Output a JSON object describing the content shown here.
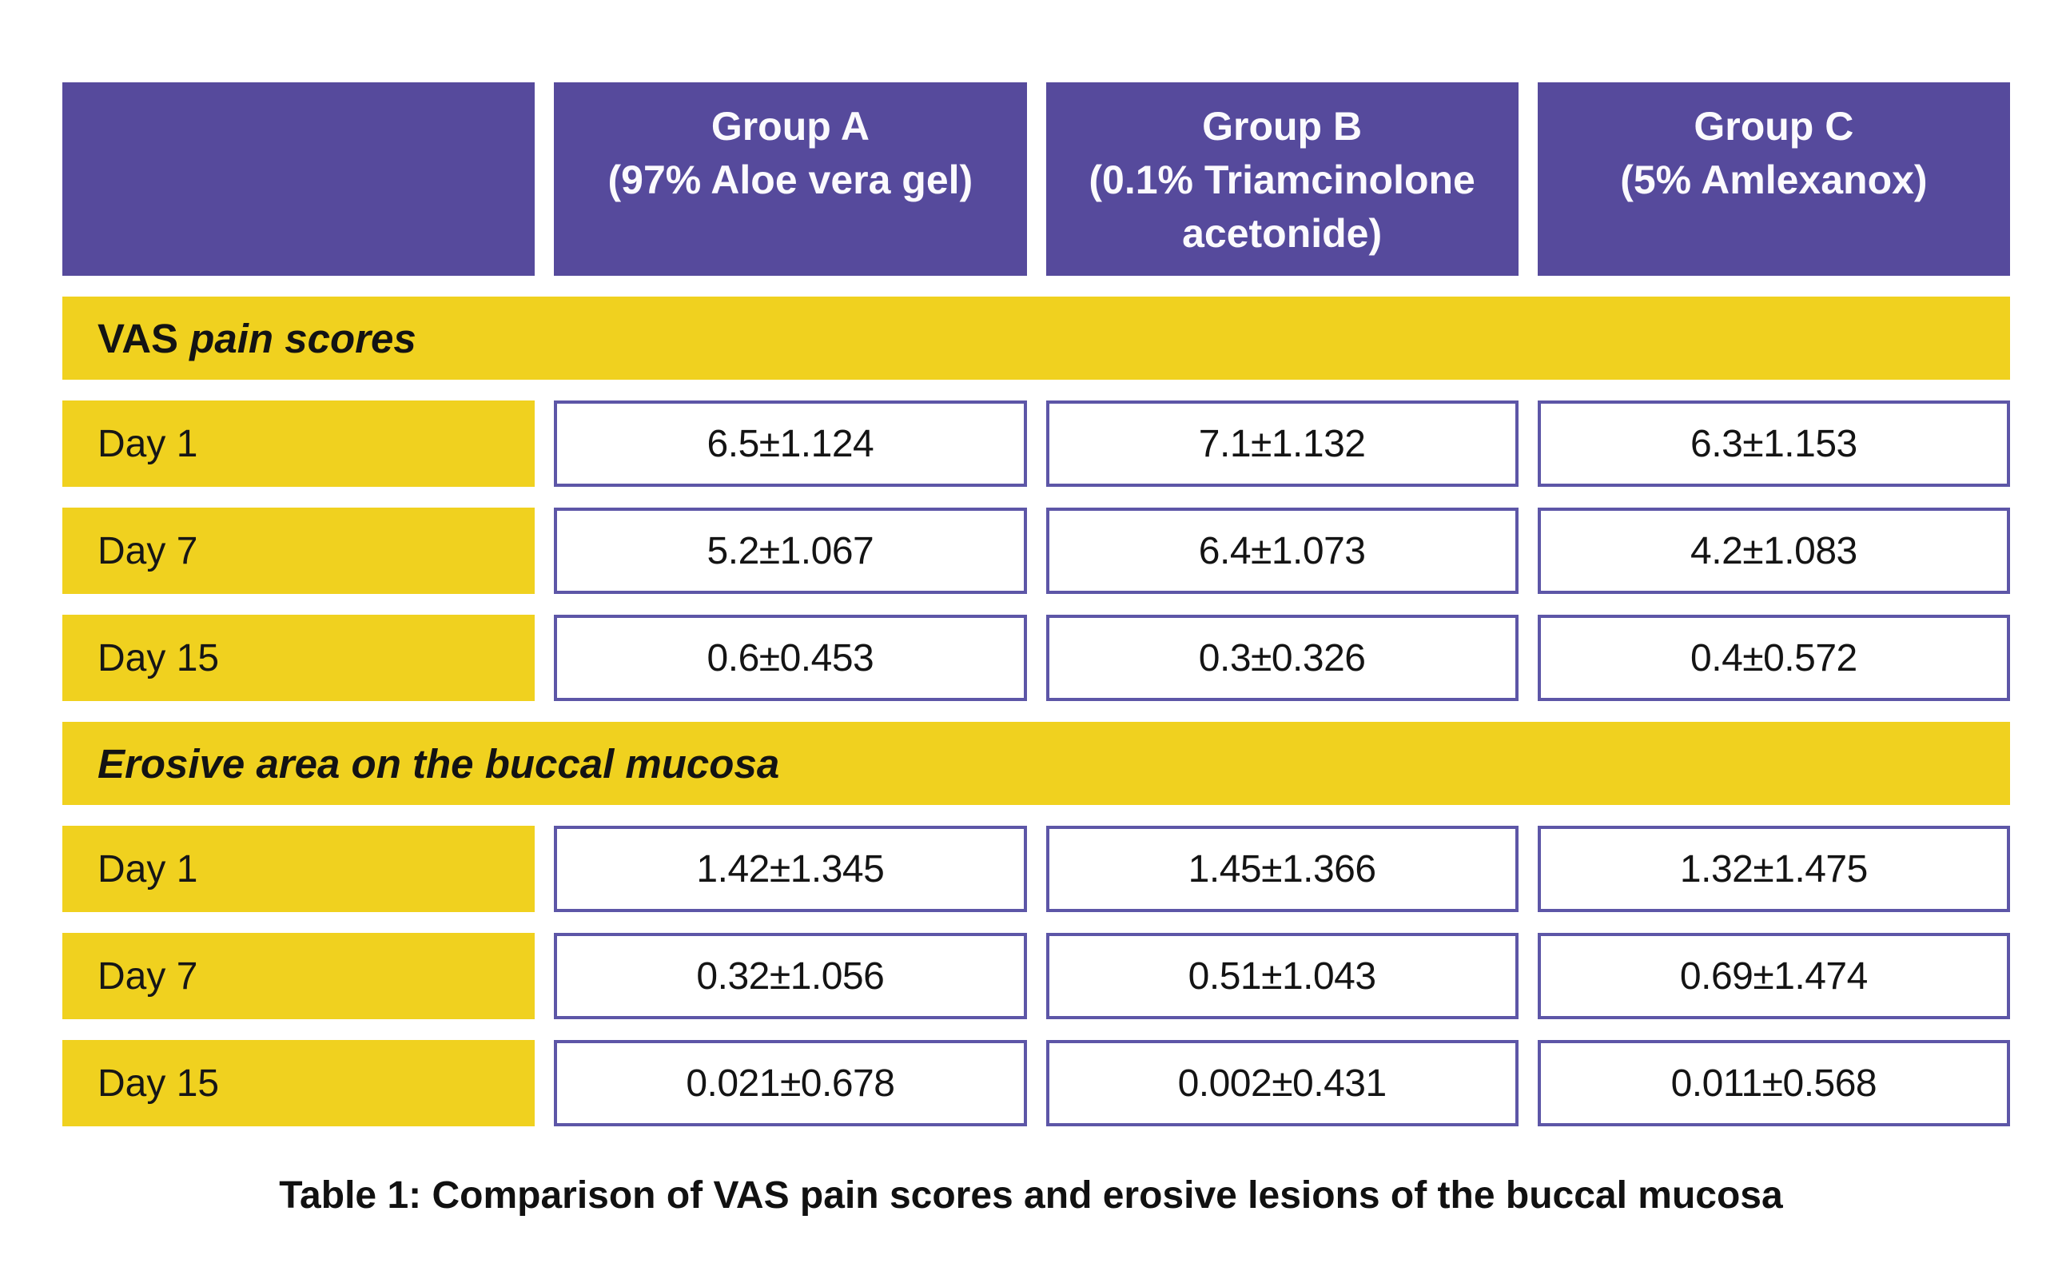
{
  "colors": {
    "header_purple": "#564a9c",
    "accent_yellow": "#f0d11f",
    "cell_border_purple": "#5d56a7",
    "header_text": "#ffffff",
    "body_text": "#141414"
  },
  "header": {
    "columns": [
      {
        "name": "Group A",
        "detail": "(97% Aloe vera gel)"
      },
      {
        "name": "Group B",
        "detail": "(0.1% Triamcinolone acetonide)"
      },
      {
        "name": "Group C",
        "detail": "(5% Amlexanox)"
      }
    ]
  },
  "sections": [
    {
      "title_regular": "VAS ",
      "title_italic": "pain scores",
      "rows": [
        {
          "label": "Day 1",
          "values": [
            "6.5±1.124",
            "7.1±1.132",
            "6.3±1.153"
          ]
        },
        {
          "label": "Day 7",
          "values": [
            "5.2±1.067",
            "6.4±1.073",
            "4.2±1.083"
          ]
        },
        {
          "label": "Day 15",
          "values": [
            "0.6±0.453",
            "0.3±0.326",
            "0.4±0.572"
          ]
        }
      ]
    },
    {
      "title_regular": "",
      "title_italic": "Erosive area on the buccal mucosa",
      "rows": [
        {
          "label": "Day 1",
          "values": [
            "1.42±1.345",
            "1.45±1.366",
            "1.32±1.475"
          ]
        },
        {
          "label": "Day 7",
          "values": [
            "0.32±1.056",
            "0.51±1.043",
            "0.69±1.474"
          ]
        },
        {
          "label": "Day 15",
          "values": [
            "0.021±0.678",
            "0.002±0.431",
            "0.011±0.568"
          ]
        }
      ]
    }
  ],
  "caption": "Table 1: Comparison of VAS pain scores and erosive lesions of the buccal mucosa",
  "chart_data": {
    "type": "table",
    "title": "Table 1: Comparison of VAS pain scores and erosive lesions of the buccal mucosa",
    "columns": [
      "",
      "Group A (97% Aloe vera gel)",
      "Group B (0.1% Triamcinolone acetonide)",
      "Group C (5% Amlexanox)"
    ],
    "groups": [
      {
        "section": "VAS pain scores",
        "rows": [
          [
            "Day 1",
            "6.5±1.124",
            "7.1±1.132",
            "6.3±1.153"
          ],
          [
            "Day 7",
            "5.2±1.067",
            "6.4±1.073",
            "4.2±1.083"
          ],
          [
            "Day 15",
            "0.6±0.453",
            "0.3±0.326",
            "0.4±0.572"
          ]
        ]
      },
      {
        "section": "Erosive area on the buccal mucosa",
        "rows": [
          [
            "Day 1",
            "1.42±1.345",
            "1.45±1.366",
            "1.32±1.475"
          ],
          [
            "Day 7",
            "0.32±1.056",
            "0.51±1.043",
            "0.69±1.474"
          ],
          [
            "Day 15",
            "0.021±0.678",
            "0.002±0.431",
            "0.011±0.568"
          ]
        ]
      }
    ]
  }
}
